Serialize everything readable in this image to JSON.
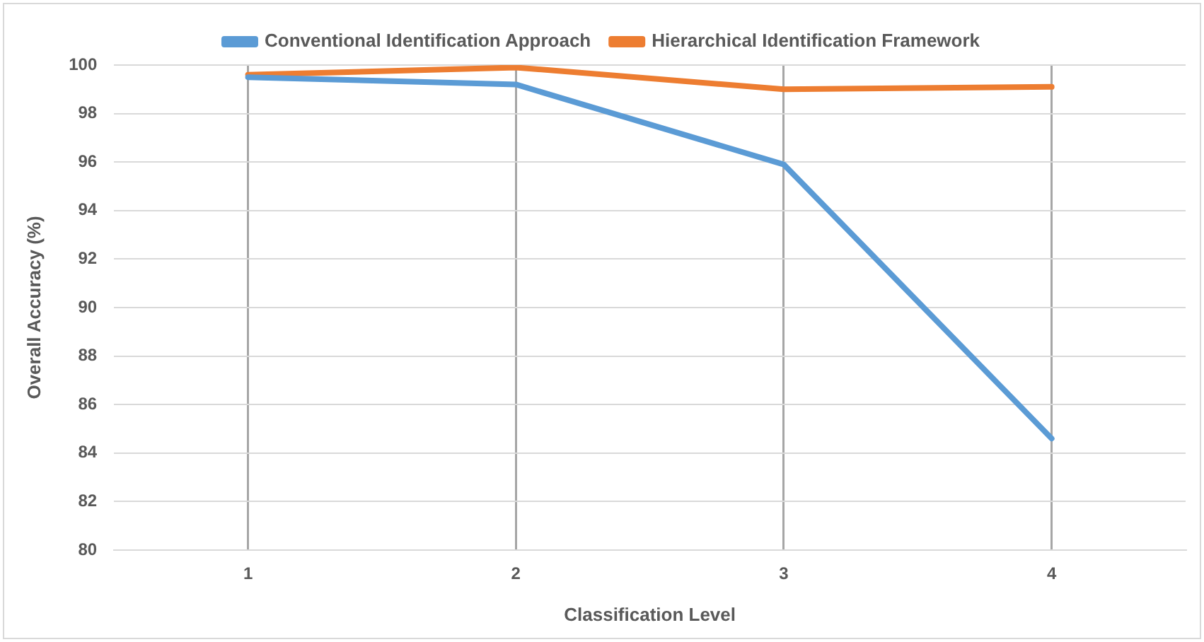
{
  "chart_data": {
    "type": "line",
    "xlabel": "Classification Level",
    "ylabel": "Overall Accuracy (%)",
    "categories": [
      "1",
      "2",
      "3",
      "4"
    ],
    "series": [
      {
        "name": "Conventional Identification Approach",
        "color": "#5b9bd5",
        "values": [
          99.5,
          99.2,
          95.9,
          84.6
        ]
      },
      {
        "name": "Hierarchical Identification Framework",
        "color": "#ed7d31",
        "values": [
          99.6,
          99.9,
          99.0,
          99.1
        ]
      }
    ],
    "ylim": [
      80,
      100
    ],
    "yticks": [
      80,
      82,
      84,
      86,
      88,
      90,
      92,
      94,
      96,
      98,
      100
    ],
    "grid": true,
    "legend": "top",
    "marker": "none",
    "line_style": "solid"
  }
}
